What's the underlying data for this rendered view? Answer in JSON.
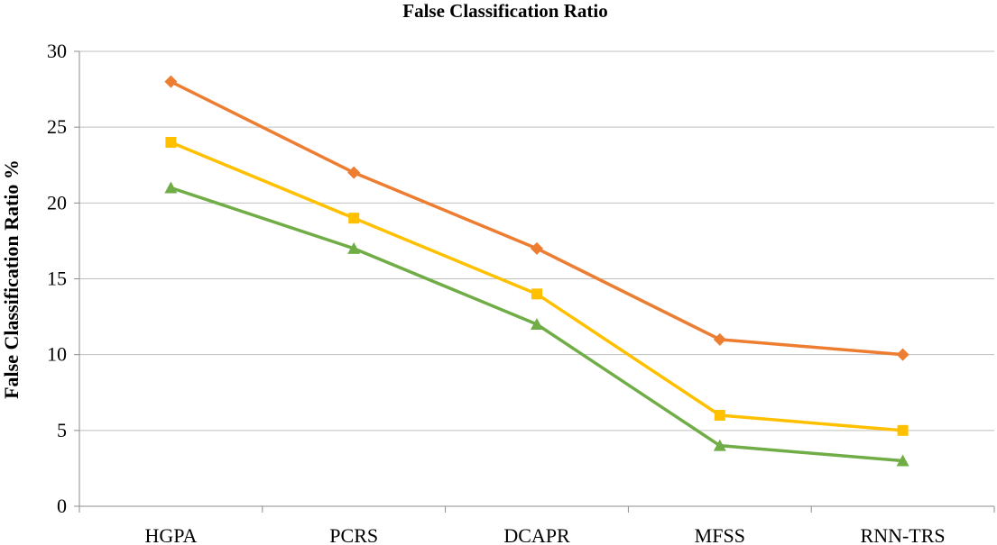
{
  "chart_data": {
    "type": "line",
    "title": "False Classification Ratio",
    "xlabel": "",
    "ylabel": "False Classification Ratio %",
    "categories": [
      "HGPA",
      "PCRS",
      "DCAPR",
      "MFSS",
      "RNN-TRS"
    ],
    "ylim": [
      0,
      30
    ],
    "yticks": [
      0,
      5,
      10,
      15,
      20,
      25,
      30
    ],
    "grid": true,
    "legend": "none",
    "series": [
      {
        "values": [
          28,
          22,
          17,
          11,
          10
        ],
        "color": "#ED7D31",
        "marker": "diamond"
      },
      {
        "values": [
          24,
          19,
          14,
          6,
          5
        ],
        "color": "#FFC000",
        "marker": "square"
      },
      {
        "values": [
          21,
          17,
          12,
          4,
          3
        ],
        "color": "#70AD47",
        "marker": "triangle"
      }
    ]
  }
}
